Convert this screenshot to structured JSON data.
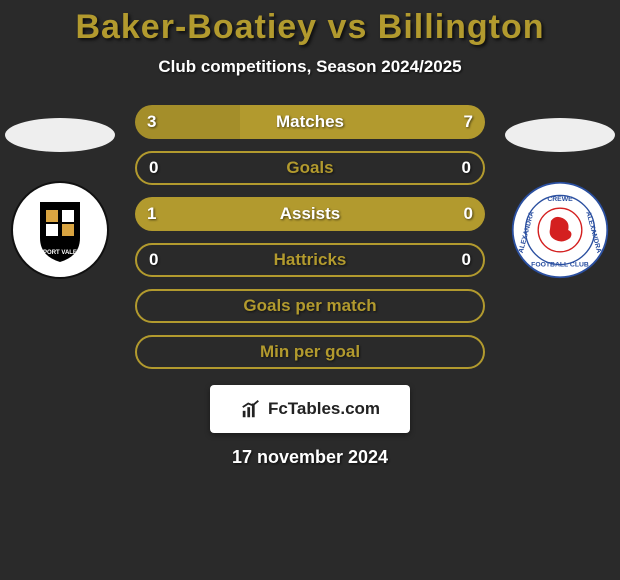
{
  "title": {
    "text": "Baker-Boatiey vs Billington",
    "color": "#b29a2e",
    "fontsize": 34
  },
  "subtitle": "Club competitions, Season 2024/2025",
  "accent_color": "#b29a2e",
  "background_color": "#2a2a2a",
  "text_color": "#ffffff",
  "rows": [
    {
      "label": "Matches",
      "left": "3",
      "right": "7",
      "type": "split",
      "left_pct": 30,
      "right_pct": 70
    },
    {
      "label": "Goals",
      "left": "0",
      "right": "0",
      "type": "outline"
    },
    {
      "label": "Assists",
      "left": "1",
      "right": "0",
      "type": "full_left"
    },
    {
      "label": "Hattricks",
      "left": "0",
      "right": "0",
      "type": "outline"
    },
    {
      "label": "Goals per match",
      "left": "",
      "right": "",
      "type": "outline"
    },
    {
      "label": "Min per goal",
      "left": "",
      "right": "",
      "type": "outline"
    }
  ],
  "left_club": {
    "name": "Port Vale",
    "badge_bg": "#ffffff",
    "badge_inner": "#000000",
    "badge_accent": "#d9a441"
  },
  "right_club": {
    "name": "Crewe Alexandra",
    "badge_bg": "#ffffff",
    "badge_inner": "#d42020",
    "badge_ring": "#2a4fa0"
  },
  "brand": {
    "text": "FcTables.com",
    "icon_color": "#222222"
  },
  "date": "17 november 2024"
}
